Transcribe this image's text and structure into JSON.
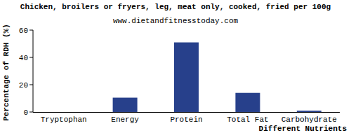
{
  "chart_data": {
    "type": "bar",
    "title": "Chicken, broilers or fryers, leg, meat only, cooked, fried per 100g",
    "subtitle": "www.dietandfitnesstoday.com",
    "x_label": "Different Nutrients",
    "y_label": "Percentage of RDH (%)",
    "categories": [
      "Tryptophan",
      "Energy",
      "Protein",
      "Total Fat",
      "Carbohydrate"
    ],
    "values": [
      0,
      10.5,
      51,
      14,
      1
    ],
    "color": "#27408b",
    "ylim": [
      0,
      60
    ],
    "yticks": [
      0,
      20,
      40,
      60
    ],
    "grid": false
  }
}
